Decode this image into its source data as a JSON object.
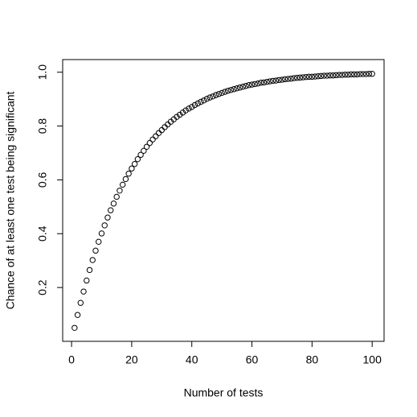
{
  "chart_data": {
    "type": "scatter",
    "xlabel": "Number of tests",
    "ylabel": "Chance of at least one test being significant",
    "x": [
      1,
      2,
      3,
      4,
      5,
      6,
      7,
      8,
      9,
      10,
      11,
      12,
      13,
      14,
      15,
      16,
      17,
      18,
      19,
      20,
      21,
      22,
      23,
      24,
      25,
      26,
      27,
      28,
      29,
      30,
      31,
      32,
      33,
      34,
      35,
      36,
      37,
      38,
      39,
      40,
      41,
      42,
      43,
      44,
      45,
      46,
      47,
      48,
      49,
      50,
      51,
      52,
      53,
      54,
      55,
      56,
      57,
      58,
      59,
      60,
      61,
      62,
      63,
      64,
      65,
      66,
      67,
      68,
      69,
      70,
      71,
      72,
      73,
      74,
      75,
      76,
      77,
      78,
      79,
      80,
      81,
      82,
      83,
      84,
      85,
      86,
      87,
      88,
      89,
      90,
      91,
      92,
      93,
      94,
      95,
      96,
      97,
      98,
      99,
      100
    ],
    "values": [
      0.05,
      0.098,
      0.143,
      0.185,
      0.226,
      0.265,
      0.302,
      0.337,
      0.37,
      0.401,
      0.431,
      0.46,
      0.487,
      0.512,
      0.537,
      0.56,
      0.582,
      0.603,
      0.623,
      0.642,
      0.659,
      0.677,
      0.693,
      0.708,
      0.723,
      0.737,
      0.75,
      0.762,
      0.774,
      0.785,
      0.796,
      0.806,
      0.816,
      0.825,
      0.834,
      0.842,
      0.85,
      0.858,
      0.865,
      0.871,
      0.878,
      0.884,
      0.89,
      0.895,
      0.901,
      0.906,
      0.91,
      0.915,
      0.919,
      0.923,
      0.927,
      0.931,
      0.934,
      0.937,
      0.94,
      0.943,
      0.946,
      0.949,
      0.952,
      0.954,
      0.956,
      0.958,
      0.961,
      0.962,
      0.964,
      0.966,
      0.968,
      0.969,
      0.971,
      0.972,
      0.974,
      0.975,
      0.976,
      0.978,
      0.979,
      0.98,
      0.981,
      0.982,
      0.983,
      0.983,
      0.984,
      0.985,
      0.986,
      0.987,
      0.987,
      0.988,
      0.988,
      0.989,
      0.99,
      0.99,
      0.991,
      0.991,
      0.992,
      0.992,
      0.992,
      0.993,
      0.993,
      0.993,
      0.994,
      0.994
    ],
    "color": "#000000",
    "xlim": [
      -2.96,
      103.96
    ],
    "ylim": [
      0.012,
      1.032
    ],
    "xticks": [
      0,
      20,
      40,
      60,
      80,
      100
    ],
    "yticks": [
      0.2,
      0.4,
      0.6,
      0.8,
      {
        "value": 1.0,
        "label": "1.0"
      }
    ]
  }
}
